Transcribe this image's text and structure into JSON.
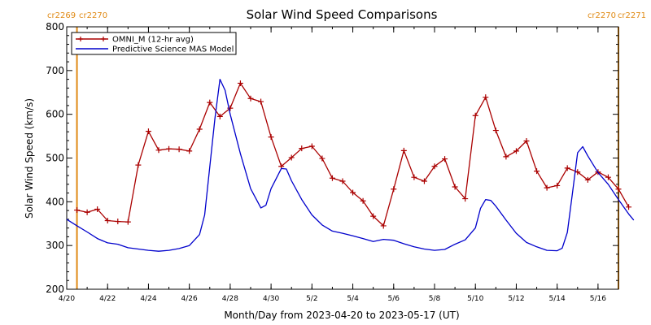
{
  "chart_data": {
    "type": "line",
    "title": "Solar Wind Speed Comparisons",
    "xlabel": "Month/Day from 2023-04-20 to 2023-05-17 (UT)",
    "ylabel": "Solar Wind Speed (km/s)",
    "xlim": [
      "2023-04-20",
      "2023-05-17"
    ],
    "ylim": [
      200,
      800
    ],
    "y_ticks": [
      200,
      300,
      400,
      500,
      600,
      700,
      800
    ],
    "x_ticks": [
      {
        "date": "2023-04-20",
        "label": "4/20"
      },
      {
        "date": "2023-04-22",
        "label": "4/22"
      },
      {
        "date": "2023-04-24",
        "label": "4/24"
      },
      {
        "date": "2023-04-26",
        "label": "4/26"
      },
      {
        "date": "2023-04-28",
        "label": "4/28"
      },
      {
        "date": "2023-04-30",
        "label": "4/30"
      },
      {
        "date": "2023-05-02",
        "label": "5/2"
      },
      {
        "date": "2023-05-04",
        "label": "5/4"
      },
      {
        "date": "2023-05-06",
        "label": "5/6"
      },
      {
        "date": "2023-05-08",
        "label": "5/8"
      },
      {
        "date": "2023-05-10",
        "label": "5/10"
      },
      {
        "date": "2023-05-12",
        "label": "5/12"
      },
      {
        "date": "2023-05-14",
        "label": "5/14"
      },
      {
        "date": "2023-05-16",
        "label": "5/16"
      }
    ],
    "grid": false,
    "legend_position": "top-left",
    "carrington_markers": [
      {
        "date": "2023-04-20 12:00",
        "left_label": "cr2269",
        "right_label": "cr2270",
        "color": "#e08a14"
      },
      {
        "date": "2023-05-17 00:00",
        "left_label": "cr2270",
        "right_label": "cr2271",
        "color": "#e08a14"
      }
    ],
    "series": [
      {
        "name": "OMNI_M (12-hr avg)",
        "color": "#aa0000",
        "marker": "plus",
        "points": [
          [
            "2023-04-20 12:00",
            381
          ],
          [
            "2023-04-21 00:00",
            376
          ],
          [
            "2023-04-21 12:00",
            383
          ],
          [
            "2023-04-22 00:00",
            357
          ],
          [
            "2023-04-22 12:00",
            355
          ],
          [
            "2023-04-23 00:00",
            354
          ],
          [
            "2023-04-23 12:00",
            484
          ],
          [
            "2023-04-24 00:00",
            561
          ],
          [
            "2023-04-24 12:00",
            518
          ],
          [
            "2023-04-25 00:00",
            521
          ],
          [
            "2023-04-25 12:00",
            520
          ],
          [
            "2023-04-26 00:00",
            516
          ],
          [
            "2023-04-26 12:00",
            566
          ],
          [
            "2023-04-27 00:00",
            627
          ],
          [
            "2023-04-27 12:00",
            595
          ],
          [
            "2023-04-28 00:00",
            614
          ],
          [
            "2023-04-28 12:00",
            671
          ],
          [
            "2023-04-29 00:00",
            636
          ],
          [
            "2023-04-29 12:00",
            629
          ],
          [
            "2023-04-30 00:00",
            548
          ],
          [
            "2023-04-30 12:00",
            481
          ],
          [
            "2023-05-01 00:00",
            501
          ],
          [
            "2023-05-01 12:00",
            522
          ],
          [
            "2023-05-02 00:00",
            527
          ],
          [
            "2023-05-02 12:00",
            499
          ],
          [
            "2023-05-03 00:00",
            454
          ],
          [
            "2023-05-03 12:00",
            447
          ],
          [
            "2023-05-04 00:00",
            421
          ],
          [
            "2023-05-04 12:00",
            402
          ],
          [
            "2023-05-05 00:00",
            367
          ],
          [
            "2023-05-05 12:00",
            345
          ],
          [
            "2023-05-06 00:00",
            429
          ],
          [
            "2023-05-06 12:00",
            517
          ],
          [
            "2023-05-07 00:00",
            456
          ],
          [
            "2023-05-07 12:00",
            447
          ],
          [
            "2023-05-08 00:00",
            481
          ],
          [
            "2023-05-08 12:00",
            498
          ],
          [
            "2023-05-09 00:00",
            434
          ],
          [
            "2023-05-09 12:00",
            407
          ],
          [
            "2023-05-10 00:00",
            597
          ],
          [
            "2023-05-10 12:00",
            639
          ],
          [
            "2023-05-11 00:00",
            563
          ],
          [
            "2023-05-11 12:00",
            503
          ],
          [
            "2023-05-12 00:00",
            516
          ],
          [
            "2023-05-12 12:00",
            539
          ],
          [
            "2023-05-13 00:00",
            470
          ],
          [
            "2023-05-13 12:00",
            432
          ],
          [
            "2023-05-14 00:00",
            437
          ],
          [
            "2023-05-14 12:00",
            477
          ],
          [
            "2023-05-15 00:00",
            468
          ],
          [
            "2023-05-15 12:00",
            450
          ],
          [
            "2023-05-16 00:00",
            468
          ],
          [
            "2023-05-16 12:00",
            456
          ],
          [
            "2023-05-17 00:00",
            429
          ],
          [
            "2023-05-17 12:00",
            388
          ]
        ]
      },
      {
        "name": "Predictive Science MAS Model",
        "color": "#0000cc",
        "marker": "none",
        "points": [
          [
            "2023-04-20 00:00",
            360
          ],
          [
            "2023-04-20 12:00",
            345
          ],
          [
            "2023-04-21 00:00",
            331
          ],
          [
            "2023-04-21 12:00",
            316
          ],
          [
            "2023-04-22 00:00",
            306
          ],
          [
            "2023-04-22 12:00",
            303
          ],
          [
            "2023-04-23 00:00",
            295
          ],
          [
            "2023-04-23 12:00",
            292
          ],
          [
            "2023-04-24 00:00",
            289
          ],
          [
            "2023-04-24 12:00",
            287
          ],
          [
            "2023-04-25 00:00",
            289
          ],
          [
            "2023-04-25 12:00",
            293
          ],
          [
            "2023-04-26 00:00",
            300
          ],
          [
            "2023-04-26 12:00",
            325
          ],
          [
            "2023-04-26 18:00",
            370
          ],
          [
            "2023-04-27 00:00",
            480
          ],
          [
            "2023-04-27 06:00",
            590
          ],
          [
            "2023-04-27 12:00",
            680
          ],
          [
            "2023-04-27 18:00",
            655
          ],
          [
            "2023-04-28 00:00",
            600
          ],
          [
            "2023-04-28 12:00",
            510
          ],
          [
            "2023-04-29 00:00",
            430
          ],
          [
            "2023-04-29 12:00",
            386
          ],
          [
            "2023-04-29 18:00",
            392
          ],
          [
            "2023-04-30 00:00",
            430
          ],
          [
            "2023-04-30 12:00",
            476
          ],
          [
            "2023-04-30 18:00",
            475
          ],
          [
            "2023-05-01 00:00",
            448
          ],
          [
            "2023-05-01 12:00",
            405
          ],
          [
            "2023-05-02 00:00",
            370
          ],
          [
            "2023-05-02 12:00",
            347
          ],
          [
            "2023-05-03 00:00",
            333
          ],
          [
            "2023-05-03 12:00",
            328
          ],
          [
            "2023-05-04 00:00",
            322
          ],
          [
            "2023-05-04 12:00",
            316
          ],
          [
            "2023-05-05 00:00",
            309
          ],
          [
            "2023-05-05 12:00",
            314
          ],
          [
            "2023-05-06 00:00",
            312
          ],
          [
            "2023-05-06 12:00",
            304
          ],
          [
            "2023-05-07 00:00",
            297
          ],
          [
            "2023-05-07 12:00",
            292
          ],
          [
            "2023-05-08 00:00",
            289
          ],
          [
            "2023-05-08 12:00",
            291
          ],
          [
            "2023-05-09 00:00",
            303
          ],
          [
            "2023-05-09 12:00",
            313
          ],
          [
            "2023-05-10 00:00",
            340
          ],
          [
            "2023-05-10 06:00",
            385
          ],
          [
            "2023-05-10 12:00",
            405
          ],
          [
            "2023-05-10 18:00",
            403
          ],
          [
            "2023-05-11 00:00",
            390
          ],
          [
            "2023-05-11 12:00",
            358
          ],
          [
            "2023-05-12 00:00",
            328
          ],
          [
            "2023-05-12 12:00",
            307
          ],
          [
            "2023-05-13 00:00",
            297
          ],
          [
            "2023-05-13 12:00",
            289
          ],
          [
            "2023-05-14 00:00",
            288
          ],
          [
            "2023-05-14 06:00",
            294
          ],
          [
            "2023-05-14 12:00",
            330
          ],
          [
            "2023-05-14 18:00",
            420
          ],
          [
            "2023-05-15 00:00",
            512
          ],
          [
            "2023-05-15 06:00",
            526
          ],
          [
            "2023-05-15 12:00",
            505
          ],
          [
            "2023-05-16 00:00",
            467
          ],
          [
            "2023-05-16 12:00",
            440
          ],
          [
            "2023-05-17 00:00",
            405
          ],
          [
            "2023-05-17 12:00",
            372
          ],
          [
            "2023-05-17 18:00",
            358
          ]
        ]
      }
    ]
  }
}
